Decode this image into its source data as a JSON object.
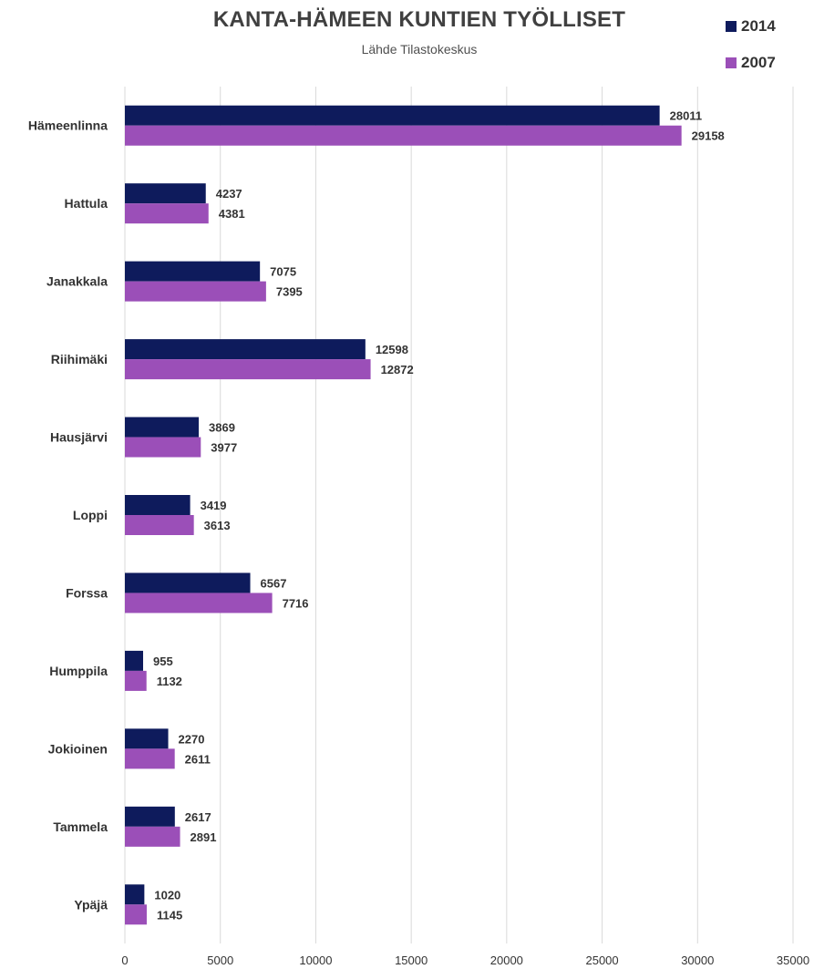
{
  "chart_data": {
    "type": "bar",
    "orientation": "horizontal",
    "title": "KANTA-HÄMEEN KUNTIEN TYÖLLISET",
    "subtitle": "Lähde Tilastokeskus",
    "categories": [
      "Hämeenlinna",
      "Hattula",
      "Janakkala",
      "Riihimäki",
      "Hausjärvi",
      "Loppi",
      "Forssa",
      "Humppila",
      "Jokioinen",
      "Tammela",
      "Ypäjä"
    ],
    "series": [
      {
        "name": "2014",
        "color": "#0e1b5c",
        "values": [
          28011,
          4237,
          7075,
          12598,
          3869,
          3419,
          6567,
          955,
          2270,
          2617,
          1020
        ]
      },
      {
        "name": "2007",
        "color": "#9b4fb8",
        "values": [
          29158,
          4381,
          7395,
          12872,
          3977,
          3613,
          7716,
          1132,
          2611,
          2891,
          1145
        ]
      }
    ],
    "xlim": [
      0,
      35000
    ],
    "xticks": [
      0,
      5000,
      10000,
      15000,
      20000,
      25000,
      30000,
      35000
    ],
    "grid": true,
    "legend_position": "top-right",
    "data_labels": true
  }
}
